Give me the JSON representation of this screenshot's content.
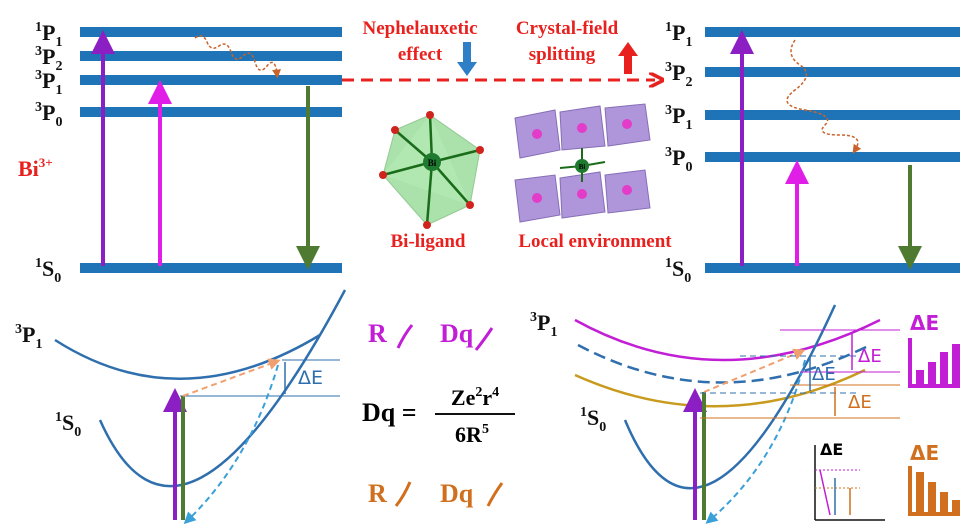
{
  "left_levels": [
    {
      "sup": "1",
      "base": "P",
      "sub": "1"
    },
    {
      "sup": "3",
      "base": "P",
      "sub": "2"
    },
    {
      "sup": "3",
      "base": "P",
      "sub": "1"
    },
    {
      "sup": "3",
      "base": "P",
      "sub": "0"
    },
    {
      "sup": "1",
      "base": "S",
      "sub": "0"
    }
  ],
  "right_levels": [
    {
      "sup": "1",
      "base": "P",
      "sub": "1"
    },
    {
      "sup": "3",
      "base": "P",
      "sub": "2"
    },
    {
      "sup": "3",
      "base": "P",
      "sub": "1"
    },
    {
      "sup": "3",
      "base": "P",
      "sub": "0"
    },
    {
      "sup": "1",
      "base": "S",
      "sub": "0"
    }
  ],
  "ion": {
    "base": "Bi",
    "sup": "3+"
  },
  "nephelauxetic": [
    "Nephelauxetic",
    "effect"
  ],
  "crystal_field": [
    "Crystal-field",
    "splitting"
  ],
  "bi_ligand": "Bi-ligand",
  "local_environment": "Local environment",
  "center_atom": "Bi",
  "bottom_left": {
    "upper": {
      "sup": "3",
      "base": "P",
      "sub": "1"
    },
    "lower": {
      "sup": "1",
      "base": "S",
      "sub": "0"
    },
    "delta": "ΔE"
  },
  "trend_increase": {
    "r": "R",
    "dq": "Dq"
  },
  "trend_decrease": {
    "r": "R",
    "dq": "Dq"
  },
  "formula": {
    "lhs": "Dq",
    "eq": "=",
    "num": [
      "Ze",
      "2",
      "r",
      "4"
    ],
    "den": [
      "6R",
      "5"
    ]
  },
  "bottom_right": {
    "upper": {
      "sup": "3",
      "base": "P",
      "sub": "1"
    },
    "lower": {
      "sup": "1",
      "base": "S",
      "sub": "0"
    },
    "deltas": [
      "ΔE",
      "ΔE",
      "ΔE"
    ],
    "icon_up": "ΔE",
    "icon_down": "ΔE",
    "inset": "ΔE"
  }
}
